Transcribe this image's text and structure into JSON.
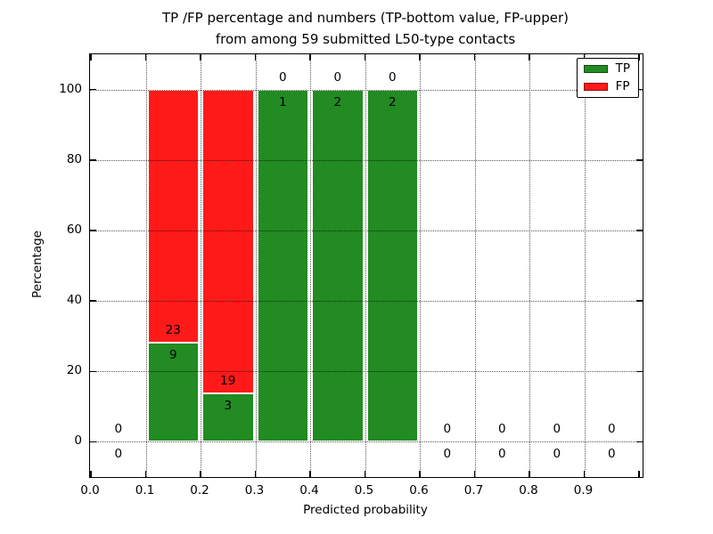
{
  "figure": {
    "title_line1": "TP /FP percentage and numbers (TP-bottom value, FP-upper)",
    "title_line2": "from among 59 submitted L50-type contacts",
    "xlabel": "Predicted probability",
    "ylabel": "Percentage"
  },
  "chart_data": {
    "type": "bar",
    "subtype": "stacked-percentage-histogram",
    "title": "TP /FP percentage and numbers (TP-bottom value, FP-upper)\nfrom among 59 submitted L50-type contacts",
    "xlabel": "Predicted probability",
    "ylabel": "Percentage",
    "xlim": [
      0.0,
      1.007
    ],
    "ylim": [
      -10,
      110
    ],
    "xticks": [
      "0.0",
      "0.1",
      "0.2",
      "0.3",
      "0.4",
      "0.5",
      "0.6",
      "0.7",
      "0.8",
      "0.9"
    ],
    "yticks": [
      0,
      20,
      40,
      60,
      80,
      100
    ],
    "grid": "dotted",
    "total_contacts": 59,
    "colors": {
      "tp": "#228b22",
      "fp": "#ff1a1a"
    },
    "legend": {
      "position": "upper right",
      "entries": [
        {
          "label": "TP",
          "color": "#228b22"
        },
        {
          "label": "FP",
          "color": "#ff1a1a"
        }
      ]
    },
    "bin_width": 0.1,
    "bins": [
      {
        "x_start": 0.0,
        "x_end": 0.1,
        "tp": 0,
        "fp": 0,
        "tp_pct": 0,
        "fp_pct": 0
      },
      {
        "x_start": 0.1,
        "x_end": 0.2,
        "tp": 9,
        "fp": 23,
        "tp_pct": 28.125,
        "fp_pct": 71.875
      },
      {
        "x_start": 0.2,
        "x_end": 0.3,
        "tp": 3,
        "fp": 19,
        "tp_pct": 13.6364,
        "fp_pct": 86.3636
      },
      {
        "x_start": 0.3,
        "x_end": 0.4,
        "tp": 1,
        "fp": 0,
        "tp_pct": 100,
        "fp_pct": 0
      },
      {
        "x_start": 0.4,
        "x_end": 0.5,
        "tp": 2,
        "fp": 0,
        "tp_pct": 100,
        "fp_pct": 0
      },
      {
        "x_start": 0.5,
        "x_end": 0.6,
        "tp": 2,
        "fp": 0,
        "tp_pct": 100,
        "fp_pct": 0
      },
      {
        "x_start": 0.6,
        "x_end": 0.7,
        "tp": 0,
        "fp": 0,
        "tp_pct": 0,
        "fp_pct": 0
      },
      {
        "x_start": 0.7,
        "x_end": 0.8,
        "tp": 0,
        "fp": 0,
        "tp_pct": 0,
        "fp_pct": 0
      },
      {
        "x_start": 0.8,
        "x_end": 0.9,
        "tp": 0,
        "fp": 0,
        "tp_pct": 0,
        "fp_pct": 0
      },
      {
        "x_start": 0.9,
        "x_end": 1.0,
        "tp": 0,
        "fp": 0,
        "tp_pct": 0,
        "fp_pct": 0
      }
    ]
  }
}
